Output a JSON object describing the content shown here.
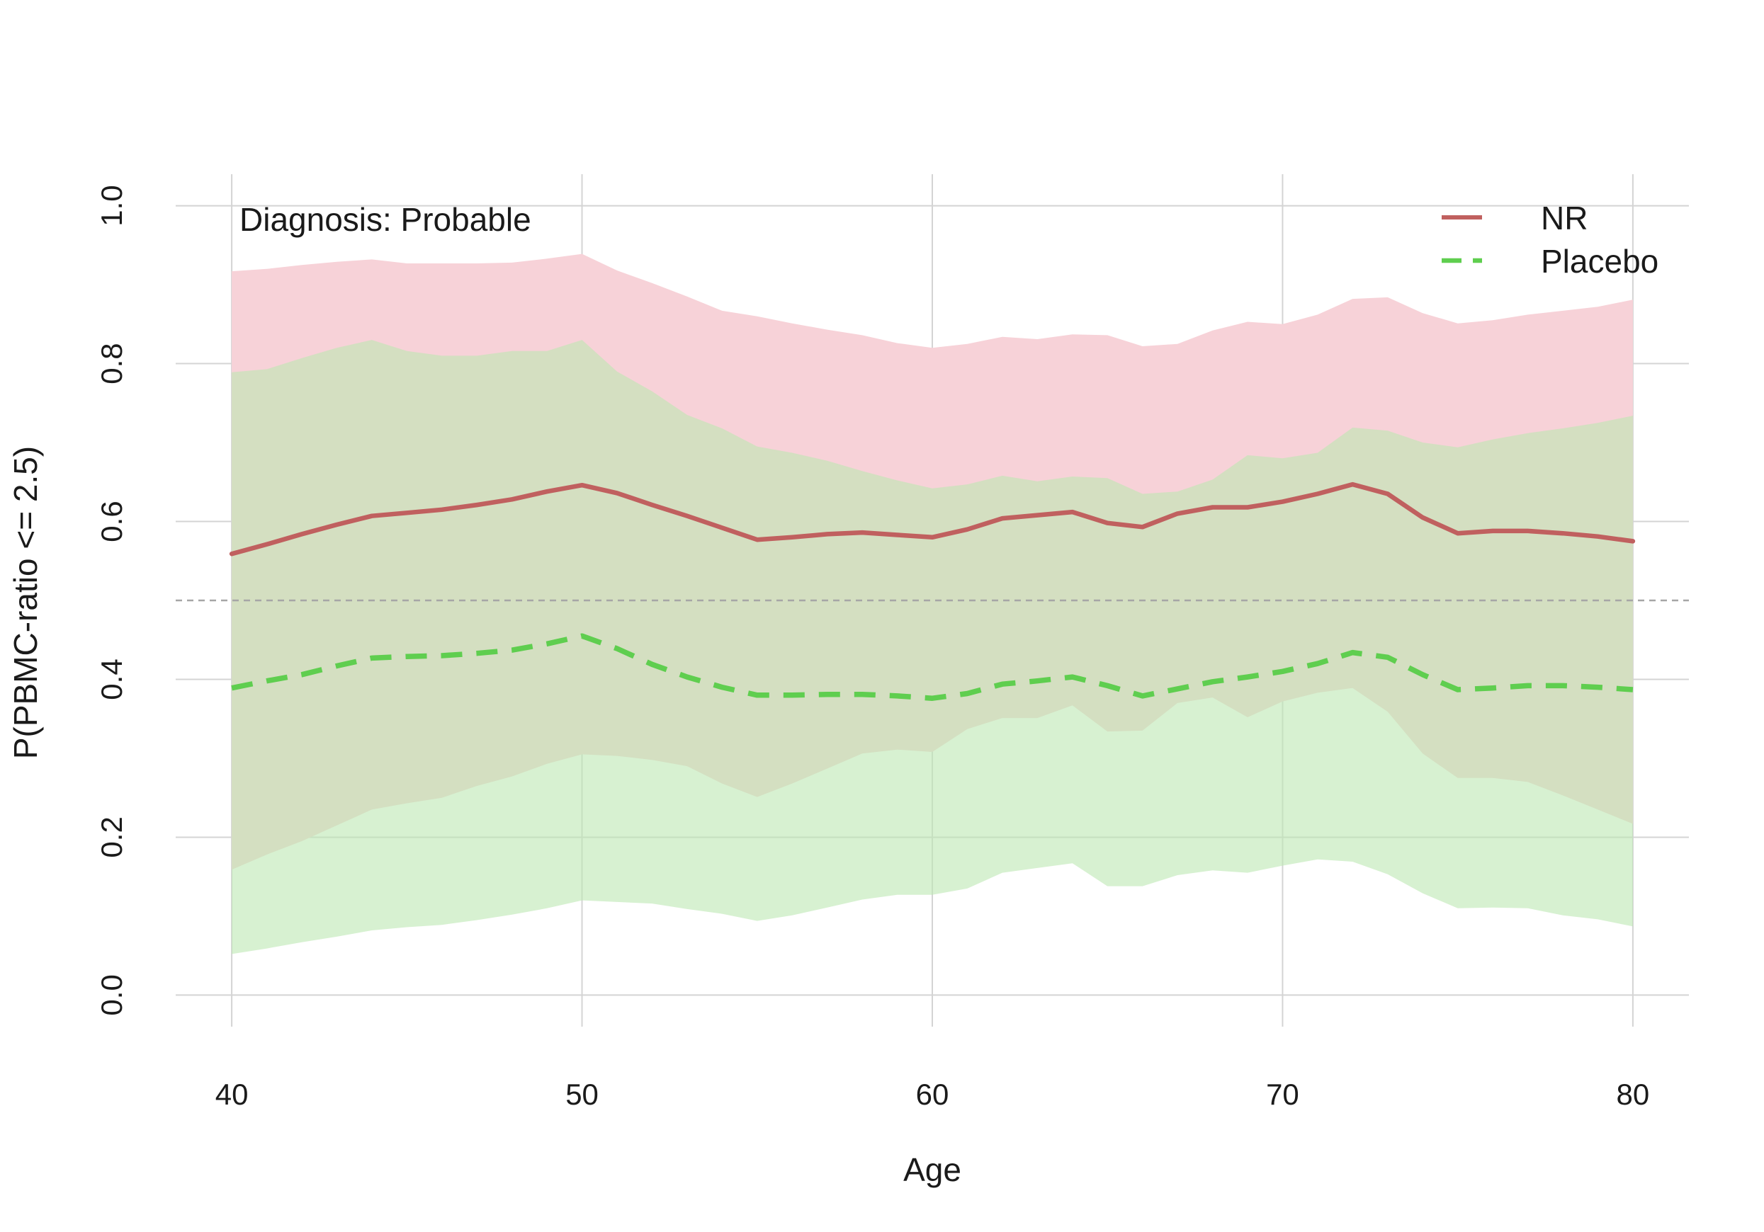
{
  "chart_data": {
    "type": "line",
    "title": "",
    "xlabel": "Age",
    "ylabel": "P(PBMC-ratio <= 2.5)",
    "annotation": "Diagnosis: Probable",
    "xlim": [
      38.4,
      81.6
    ],
    "ylim": [
      -0.04,
      1.04
    ],
    "x_ticks": [
      40,
      50,
      60,
      70,
      80
    ],
    "y_ticks": [
      0.0,
      0.2,
      0.4,
      0.6,
      0.8,
      1.0
    ],
    "x_tick_labels": [
      "40",
      "50",
      "60",
      "70",
      "80"
    ],
    "y_tick_labels": [
      "0.0",
      "0.2",
      "0.4",
      "0.6",
      "0.8",
      "1.0"
    ],
    "grid": true,
    "reference_line": {
      "y": 0.5,
      "style": "dashed",
      "color": "#a6a6a6"
    },
    "legend": {
      "position": "top-right"
    },
    "x": [
      40,
      41,
      42,
      43,
      44,
      45,
      46,
      47,
      48,
      49,
      50,
      51,
      52,
      53,
      54,
      55,
      56,
      57,
      58,
      59,
      60,
      61,
      62,
      63,
      64,
      65,
      66,
      67,
      68,
      69,
      70,
      71,
      72,
      73,
      74,
      75,
      76,
      77,
      78,
      79,
      80
    ],
    "series": [
      {
        "name": "NR",
        "color": "#c0605f",
        "band_color": "#f7d2d8",
        "line_style": "solid",
        "values": [
          0.559,
          0.571,
          0.584,
          0.596,
          0.607,
          0.611,
          0.615,
          0.621,
          0.628,
          0.638,
          0.646,
          0.636,
          0.621,
          0.607,
          0.592,
          0.577,
          0.58,
          0.584,
          0.586,
          0.583,
          0.58,
          0.59,
          0.604,
          0.608,
          0.612,
          0.598,
          0.593,
          0.61,
          0.618,
          0.618,
          0.625,
          0.635,
          0.647,
          0.635,
          0.605,
          0.585,
          0.588,
          0.588,
          0.585,
          0.581,
          0.575
        ],
        "lower": [
          0.159,
          0.178,
          0.195,
          0.215,
          0.235,
          0.243,
          0.25,
          0.265,
          0.277,
          0.293,
          0.305,
          0.303,
          0.298,
          0.29,
          0.268,
          0.251,
          0.268,
          0.287,
          0.306,
          0.311,
          0.308,
          0.337,
          0.351,
          0.351,
          0.367,
          0.334,
          0.335,
          0.37,
          0.377,
          0.352,
          0.372,
          0.383,
          0.389,
          0.359,
          0.306,
          0.275,
          0.275,
          0.27,
          0.253,
          0.235,
          0.217
        ],
        "upper": [
          0.917,
          0.92,
          0.925,
          0.929,
          0.932,
          0.927,
          0.927,
          0.927,
          0.928,
          0.933,
          0.939,
          0.918,
          0.902,
          0.885,
          0.867,
          0.86,
          0.851,
          0.843,
          0.836,
          0.826,
          0.82,
          0.825,
          0.834,
          0.831,
          0.837,
          0.836,
          0.822,
          0.825,
          0.842,
          0.853,
          0.85,
          0.862,
          0.882,
          0.884,
          0.864,
          0.851,
          0.855,
          0.862,
          0.867,
          0.872,
          0.881
        ]
      },
      {
        "name": "Placebo",
        "color": "#5fce4f",
        "band_color": "#d8f2d4",
        "line_style": "dashed",
        "values": [
          0.389,
          0.398,
          0.406,
          0.417,
          0.427,
          0.429,
          0.43,
          0.433,
          0.437,
          0.445,
          0.455,
          0.439,
          0.419,
          0.403,
          0.39,
          0.38,
          0.38,
          0.381,
          0.381,
          0.379,
          0.376,
          0.382,
          0.394,
          0.398,
          0.403,
          0.392,
          0.379,
          0.388,
          0.397,
          0.403,
          0.41,
          0.42,
          0.434,
          0.428,
          0.406,
          0.387,
          0.389,
          0.392,
          0.392,
          0.39,
          0.387
        ],
        "lower": [
          0.052,
          0.059,
          0.067,
          0.074,
          0.082,
          0.086,
          0.089,
          0.095,
          0.102,
          0.11,
          0.12,
          0.118,
          0.116,
          0.109,
          0.103,
          0.094,
          0.101,
          0.111,
          0.121,
          0.127,
          0.127,
          0.135,
          0.155,
          0.161,
          0.167,
          0.138,
          0.138,
          0.152,
          0.158,
          0.155,
          0.164,
          0.172,
          0.169,
          0.153,
          0.129,
          0.11,
          0.111,
          0.11,
          0.101,
          0.096,
          0.087
        ],
        "upper": [
          0.789,
          0.793,
          0.807,
          0.82,
          0.83,
          0.816,
          0.81,
          0.81,
          0.816,
          0.816,
          0.83,
          0.79,
          0.765,
          0.735,
          0.718,
          0.695,
          0.687,
          0.677,
          0.664,
          0.652,
          0.642,
          0.647,
          0.658,
          0.651,
          0.657,
          0.655,
          0.635,
          0.638,
          0.653,
          0.684,
          0.68,
          0.687,
          0.719,
          0.715,
          0.7,
          0.694,
          0.704,
          0.712,
          0.718,
          0.725,
          0.734
        ]
      }
    ]
  }
}
